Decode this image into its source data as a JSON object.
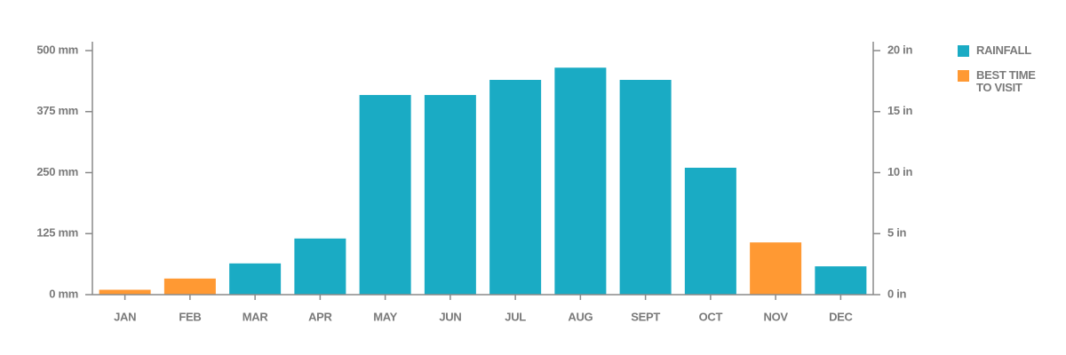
{
  "chart_data": {
    "type": "bar",
    "categories": [
      "JAN",
      "FEB",
      "MAR",
      "APR",
      "MAY",
      "JUN",
      "JUL",
      "AUG",
      "SEPT",
      "OCT",
      "NOV",
      "DEC"
    ],
    "series": [
      {
        "name": "RAINFALL",
        "color": "#1aabc4",
        "values": [
          null,
          null,
          64,
          115,
          409,
          409,
          440,
          465,
          440,
          260,
          null,
          58
        ]
      },
      {
        "name": "BEST TIME TO VISIT",
        "color": "#ff9933",
        "values": [
          10,
          33,
          null,
          null,
          null,
          null,
          null,
          null,
          null,
          null,
          107,
          null
        ]
      }
    ],
    "ylim": [
      0,
      500
    ],
    "yticks": [
      {
        "value": 0,
        "label": "0 mm"
      },
      {
        "value": 125,
        "label": "125 mm"
      },
      {
        "value": 250,
        "label": "250 mm"
      },
      {
        "value": 375,
        "label": "375 mm"
      },
      {
        "value": 500,
        "label": "500 mm"
      }
    ],
    "y2lim": [
      0,
      20
    ],
    "y2ticks": [
      {
        "value": 0,
        "label": "0 in"
      },
      {
        "value": 5,
        "label": "5 in"
      },
      {
        "value": 10,
        "label": "10 in"
      },
      {
        "value": 15,
        "label": "15 in"
      },
      {
        "value": 20,
        "label": "20 in"
      }
    ],
    "grid": false
  }
}
